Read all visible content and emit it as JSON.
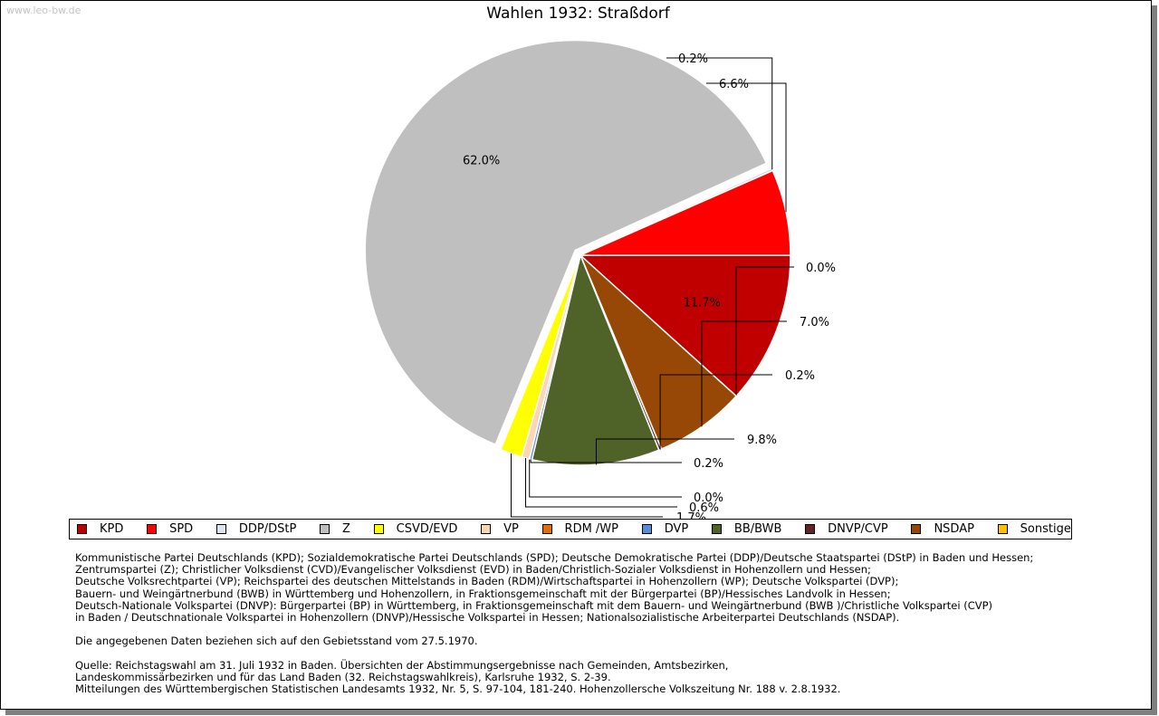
{
  "watermark": "www.leo-bw.de",
  "chart_data": {
    "type": "pie",
    "title": "Wahlen 1932: Straßdorf",
    "slices": [
      {
        "name": "KPD",
        "value": 11.7,
        "label": "11.7%",
        "color": "#c00000"
      },
      {
        "name": "DDP/DStP",
        "value": 0.0,
        "label": "0.0%",
        "color": "#dbe5f1"
      },
      {
        "name": "NSDAP",
        "value": 7.0,
        "label": "7.0%",
        "color": "#984806"
      },
      {
        "name": "DNVP/CVP",
        "value": 0.2,
        "label": "0.2%",
        "color": "#632423"
      },
      {
        "name": "BB/BWB",
        "value": 9.8,
        "label": "9.8%",
        "color": "#4f6228"
      },
      {
        "name": "DVP",
        "value": 0.2,
        "label": "0.2%",
        "color": "#558ed5"
      },
      {
        "name": "RDM /WP",
        "value": 0.0,
        "label": "0.0%",
        "color": "#e46c0a"
      },
      {
        "name": "VP",
        "value": 0.6,
        "label": "0.6%",
        "color": "#fcd5b5"
      },
      {
        "name": "CSVD/EVD",
        "value": 1.7,
        "label": "1.7%",
        "color": "#ffff00"
      },
      {
        "name": "Z",
        "value": 62.0,
        "label": "62.0%",
        "color": "#bfbfbf"
      },
      {
        "name": "Sonstige",
        "value": 0.2,
        "label": "0.2%",
        "color": "#d9d9e8"
      },
      {
        "name": "SPD",
        "value": 6.6,
        "label": "6.6%",
        "color": "#ff0000"
      }
    ],
    "legend": [
      {
        "label": "KPD",
        "color": "#c00000"
      },
      {
        "label": "SPD",
        "color": "#ff0000"
      },
      {
        "label": "DDP/DStP",
        "color": "#dbe5f1"
      },
      {
        "label": "Z",
        "color": "#bfbfbf"
      },
      {
        "label": "CSVD/EVD",
        "color": "#ffff00"
      },
      {
        "label": "VP",
        "color": "#fcd5b5"
      },
      {
        "label": "RDM /WP",
        "color": "#e46c0a"
      },
      {
        "label": "DVP",
        "color": "#558ed5"
      },
      {
        "label": "BB/BWB",
        "color": "#4f6228"
      },
      {
        "label": "DNVP/CVP",
        "color": "#632423"
      },
      {
        "label": "NSDAP",
        "color": "#984806"
      },
      {
        "label": "Sonstige",
        "color": "#ffc000"
      }
    ]
  },
  "notes": {
    "parties": [
      "Kommunistische Partei Deutschlands (KPD); Sozialdemokratische Partei Deutschlands (SPD); Deutsche Demokratische Partei (DDP)/Deutsche Staatspartei (DStP) in Baden und Hessen;",
      "Zentrumspartei (Z); Christlicher Volksdienst (CVD)/Evangelischer Volksdienst (EVD) in Baden/Christlich-Sozialer Volksdienst in Hohenzollern und Hessen;",
      "Deutsche Volksrechtpartei (VP); Reichspartei des deutschen Mittelstands in Baden (RDM)/Wirtschaftspartei in Hohenzollern (WP); Deutsche Volkspartei (DVP);",
      "Bauern- und Weingärtnerbund (BWB) in Württemberg und Hohenzollern, in Fraktionsgemeinschaft mit der Bürgerpartei (BP)/Hessisches Landvolk in Hessen;",
      "Deutsch-Nationale Volkspartei (DNVP): Bürgerpartei (BP) in Württemberg, in Fraktionsgemeinschaft mit dem Bauern- und Weingärtnerbund (BWB )/Christliche Volkspartei (CVP)",
      "in Baden / Deutschnationale Volkspartei in Hohenzollern (DNVP)/Hessische Volkspartei in Hessen; Nationalsozialistische Arbeiterpartei Deutschlands (NSDAP)."
    ],
    "territory": "Die angegebenen Daten beziehen sich auf den Gebietsstand vom 27.5.1970.",
    "source": [
      "Quelle: Reichstagswahl am 31. Juli 1932 in Baden. Übersichten der Abstimmungsergebnisse nach Gemeinden, Amtsbezirken,",
      "Landeskommissärbezirken und für das Land Baden (32. Reichstagswahlkreis), Karlsruhe 1932, S. 2-39.",
      "Mitteilungen des Württembergischen Statistischen Landesamts 1932, Nr. 5, S. 97-104, 181-240. Hohenzollersche Volkszeitung Nr. 188 v. 2.8.1932."
    ]
  }
}
